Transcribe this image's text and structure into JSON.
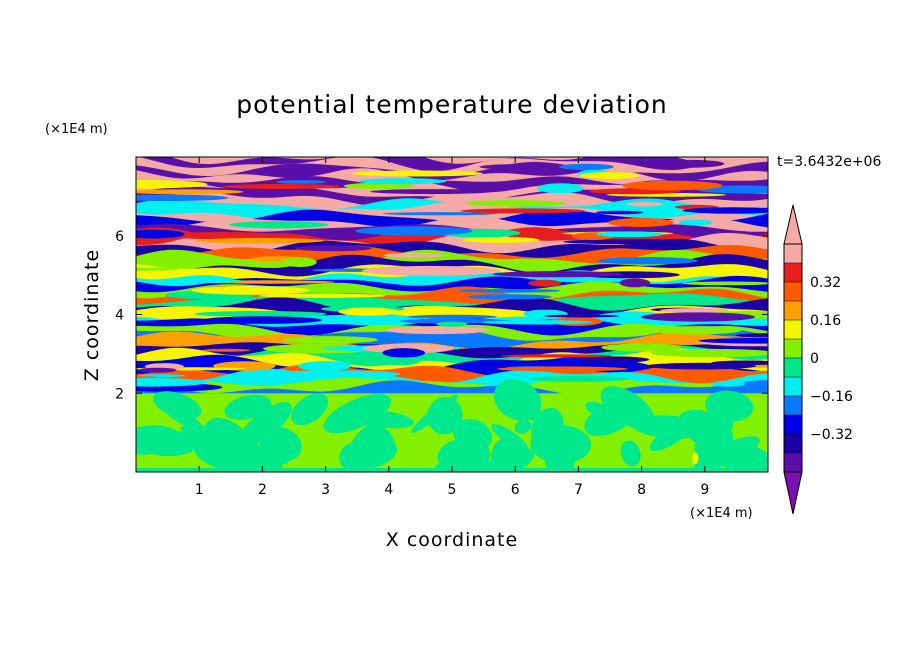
{
  "chart_data": {
    "type": "heatmap",
    "title": "potential temperature deviation",
    "xlabel": "X coordinate",
    "ylabel": "Z coordinate",
    "x_unit": "(×1E4 m)",
    "y_unit": "(×1E4 m)",
    "time_label": "t=3.6432e+06",
    "xlim": [
      0,
      10
    ],
    "ylim": [
      0,
      8
    ],
    "x_ticks": [
      "1",
      "2",
      "3",
      "4",
      "5",
      "6",
      "7",
      "8",
      "9"
    ],
    "y_ticks": [
      "2",
      "4",
      "6"
    ],
    "colorbar": {
      "levels": [
        -0.4,
        -0.32,
        -0.24,
        -0.16,
        -0.08,
        0,
        0.08,
        0.16,
        0.24,
        0.32,
        0.4
      ],
      "labels": [
        "0.32",
        "0.16",
        "0",
        "−0.16",
        "−0.32"
      ],
      "colors_low_to_high": [
        "#5a0fa8",
        "#1c00a6",
        "#0000e6",
        "#0a78ff",
        "#00f0f0",
        "#00e88c",
        "#82f000",
        "#f5f500",
        "#ffa000",
        "#ff5a00",
        "#e61e1e",
        "#f5aaa5"
      ],
      "under_color": "#7a10b0",
      "over_color": "#f5aaa5"
    },
    "background_region": {
      "z_top": 2,
      "dominant_value": "0 to 0.08"
    }
  }
}
